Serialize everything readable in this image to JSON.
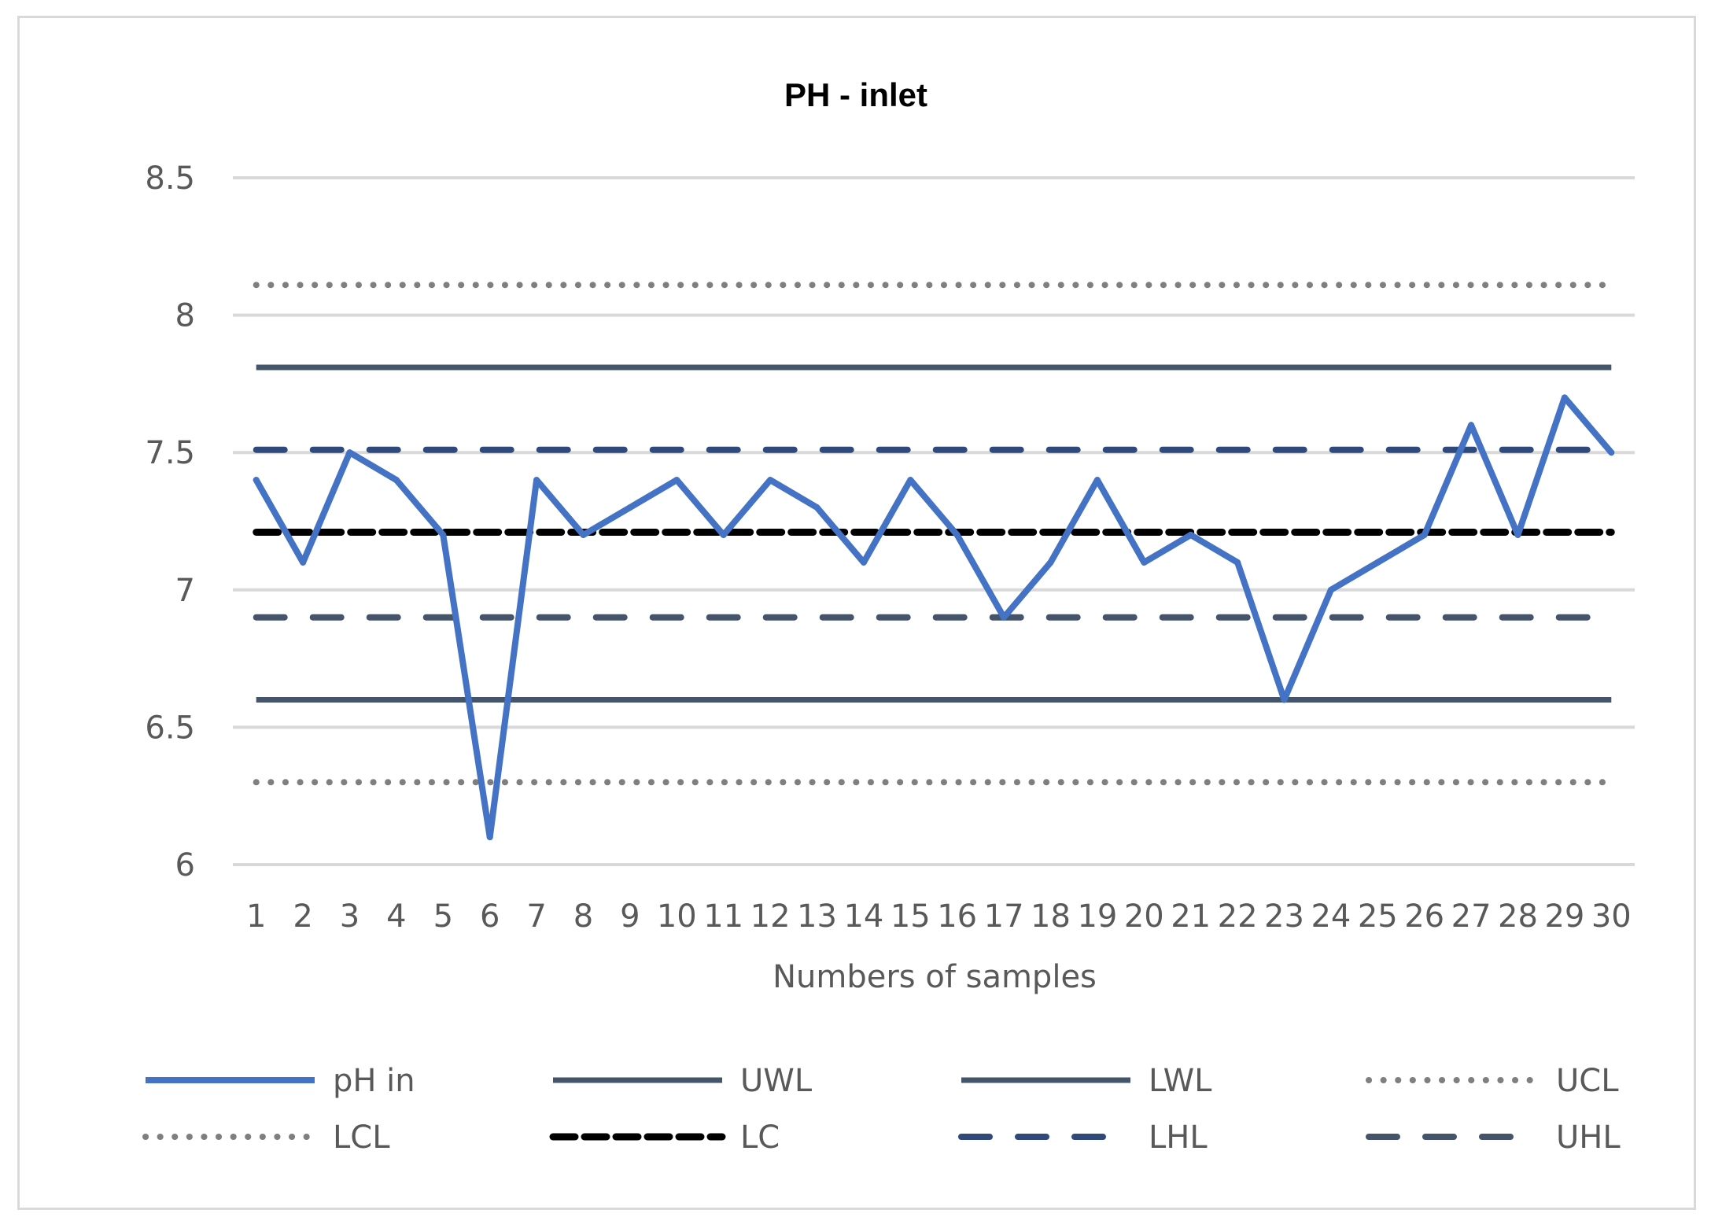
{
  "chart_data": {
    "type": "line",
    "title": "PH - inlet",
    "xlabel": "Numbers of samples",
    "ylabel": "",
    "ylim": [
      6,
      8.5
    ],
    "yticks": [
      "6",
      "6.5",
      "7",
      "7.5",
      "8",
      "8.5"
    ],
    "ytick_values": [
      6,
      6.5,
      7,
      7.5,
      8,
      8.5
    ],
    "categories": [
      "1",
      "2",
      "3",
      "4",
      "5",
      "6",
      "7",
      "8",
      "9",
      "10",
      "11",
      "12",
      "13",
      "14",
      "15",
      "16",
      "17",
      "18",
      "19",
      "20",
      "21",
      "22",
      "23",
      "24",
      "25",
      "26",
      "27",
      "28",
      "29",
      "30"
    ],
    "grid": true,
    "legend_position": "bottom",
    "series": [
      {
        "name": "pH in",
        "color": "#4472c4",
        "style": "solid",
        "values": [
          7.4,
          7.1,
          7.5,
          7.4,
          7.2,
          6.1,
          7.4,
          7.2,
          7.3,
          7.4,
          7.2,
          7.4,
          7.3,
          7.1,
          7.4,
          7.2,
          6.9,
          7.1,
          7.4,
          7.1,
          7.2,
          7.1,
          6.6,
          7.0,
          7.1,
          7.2,
          7.6,
          7.2,
          7.7,
          7.5
        ]
      },
      {
        "name": "UWL",
        "color": "#44546a",
        "style": "solid",
        "value": 7.81
      },
      {
        "name": "LWL",
        "color": "#44546a",
        "style": "solid",
        "value": 6.6
      },
      {
        "name": "UCL",
        "color": "#7f7f7f",
        "style": "dotted",
        "value": 8.11
      },
      {
        "name": "LCL",
        "color": "#7f7f7f",
        "style": "dotted",
        "value": 6.3
      },
      {
        "name": "LC",
        "color": "#000000",
        "style": "dashed",
        "value": 7.21
      },
      {
        "name": "LHL",
        "color": "#2f4a7a",
        "style": "longdash",
        "value": 7.51
      },
      {
        "name": "UHL",
        "color": "#44546a",
        "style": "longdash",
        "value": 6.9
      }
    ]
  }
}
